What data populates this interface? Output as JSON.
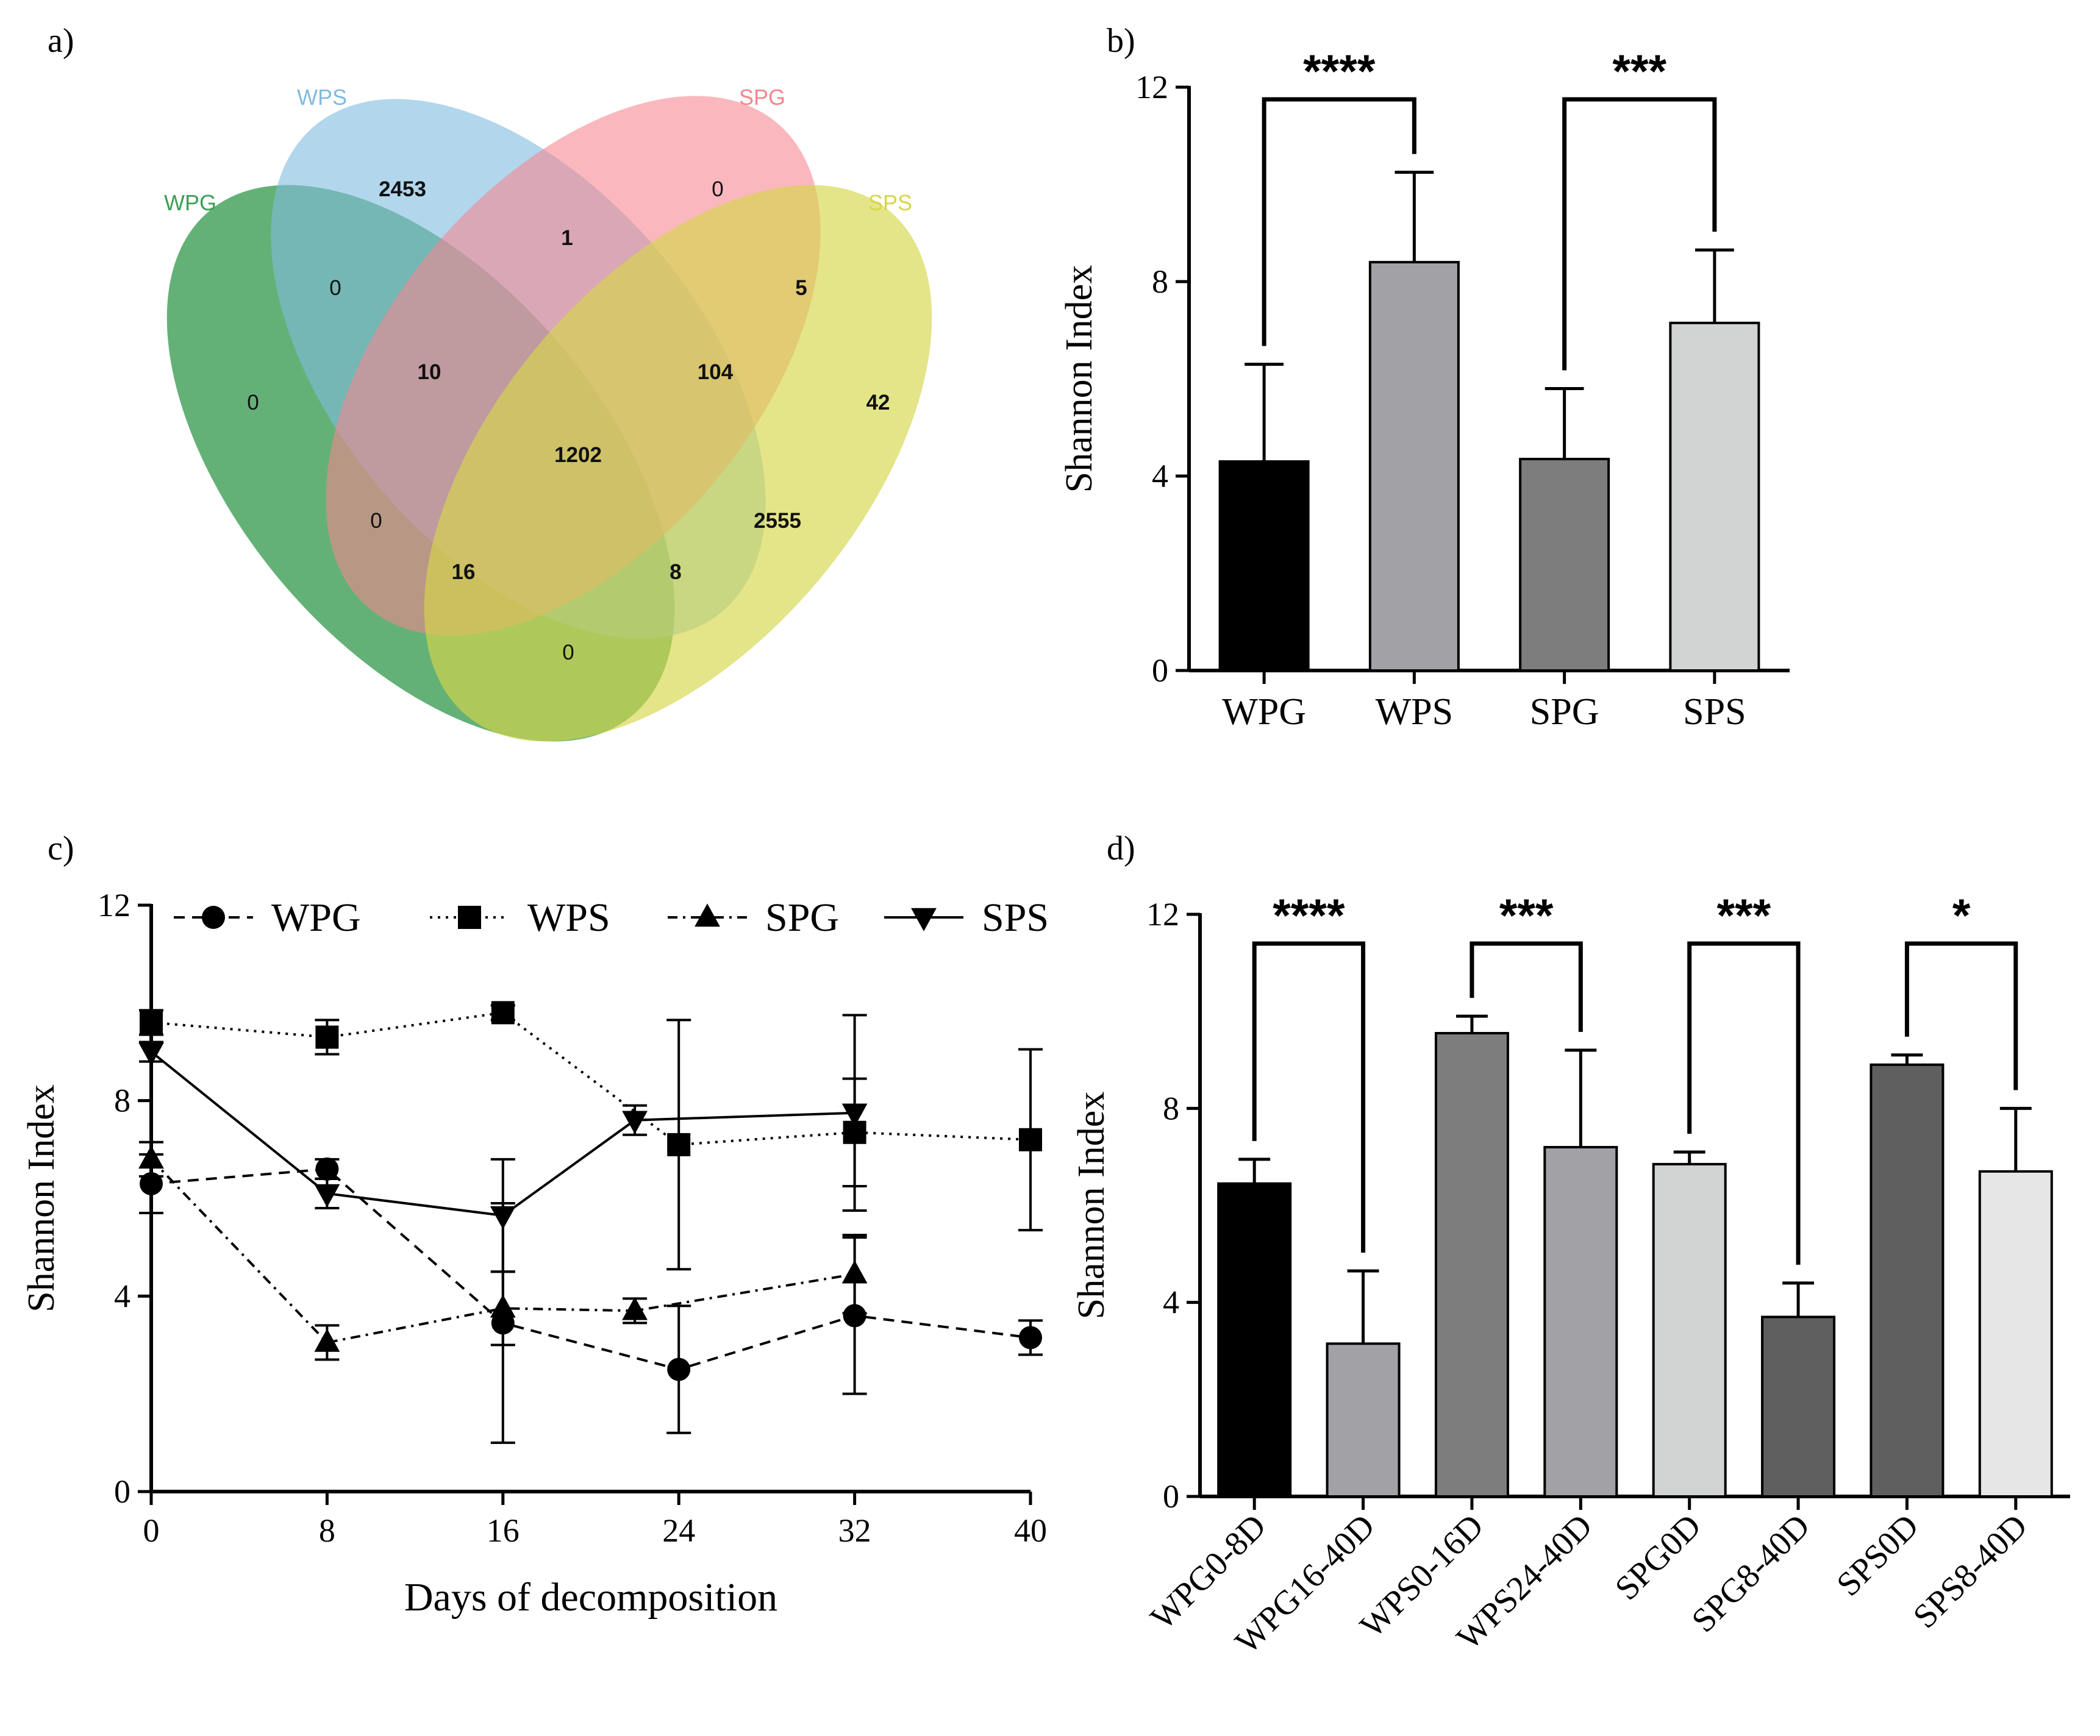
{
  "figure": {
    "labels": [
      "a)",
      "b)",
      "c)",
      "d)"
    ]
  },
  "chart_data": [
    {
      "panel": "a)",
      "type": "venn",
      "title": "",
      "sets": [
        {
          "name": "WPG",
          "color": "#3d9e55"
        },
        {
          "name": "WPS",
          "color": "#7fbbe0"
        },
        {
          "name": "SPG",
          "color": "#f7848f"
        },
        {
          "name": "SPS",
          "color": "#d6d64a"
        }
      ],
      "regions": [
        {
          "sets": [
            "WPS"
          ],
          "value": 2453
        },
        {
          "sets": [
            "SPG"
          ],
          "value": 0
        },
        {
          "sets": [
            "WPG"
          ],
          "value": 0
        },
        {
          "sets": [
            "SPS"
          ],
          "value": 42
        },
        {
          "sets": [
            "WPS",
            "SPG"
          ],
          "value": 1
        },
        {
          "sets": [
            "WPG",
            "WPS"
          ],
          "value": 0
        },
        {
          "sets": [
            "SPG",
            "SPS"
          ],
          "value": 5
        },
        {
          "sets": [
            "WPG",
            "WPS",
            "SPG"
          ],
          "value": 10
        },
        {
          "sets": [
            "WPS",
            "SPG",
            "SPS"
          ],
          "value": 104
        },
        {
          "sets": [
            "WPG",
            "WPS",
            "SPG",
            "SPS"
          ],
          "value": 1202
        },
        {
          "sets": [
            "WPG",
            "SPG"
          ],
          "value": 0
        },
        {
          "sets": [
            "WPS",
            "SPS"
          ],
          "value": 2555
        },
        {
          "sets": [
            "WPG",
            "SPG",
            "SPS"
          ],
          "value": 16
        },
        {
          "sets": [
            "WPG",
            "WPS",
            "SPS"
          ],
          "value": 8
        },
        {
          "sets": [
            "WPG",
            "SPS"
          ],
          "value": 0
        }
      ]
    },
    {
      "panel": "b)",
      "type": "bar",
      "title": "",
      "xlabel": "",
      "ylabel": "Shannon Index",
      "ylim": [
        0,
        12
      ],
      "yticks": [
        0,
        4,
        8,
        12
      ],
      "categories": [
        "WPG",
        "WPS",
        "SPG",
        "SPS"
      ],
      "values": [
        4.3,
        8.4,
        4.35,
        7.15
      ],
      "errors": [
        2.0,
        1.85,
        1.45,
        1.5
      ],
      "colors": [
        "#000000",
        "#a2a2a6",
        "#7d7d7d",
        "#d2d4d4"
      ],
      "significance": [
        {
          "from": 0,
          "to": 1,
          "label": "****"
        },
        {
          "from": 2,
          "to": 3,
          "label": "***"
        }
      ]
    },
    {
      "panel": "c)",
      "type": "line",
      "title": "",
      "xlabel": "Days of decomposition",
      "ylabel": "Shannon Index",
      "xlim": [
        0,
        40
      ],
      "ylim": [
        0,
        12
      ],
      "xticks": [
        0,
        8,
        16,
        24,
        32,
        40
      ],
      "yticks": [
        0,
        4,
        8,
        12
      ],
      "legend_position": "top",
      "series": [
        {
          "name": "WPG",
          "marker": "circle",
          "dash": "dashed",
          "x": [
            0,
            8,
            16,
            24,
            32,
            40
          ],
          "y": [
            6.3,
            6.6,
            3.45,
            2.5,
            3.6,
            3.15
          ],
          "err": [
            0.6,
            0.2,
            2.45,
            1.3,
            1.6,
            0.35
          ]
        },
        {
          "name": "WPS",
          "marker": "square",
          "dash": "dotted",
          "x": [
            0,
            8,
            16,
            24,
            32,
            40
          ],
          "y": [
            9.6,
            9.3,
            9.8,
            7.1,
            7.35,
            7.2
          ],
          "err": [
            0.25,
            0.35,
            0.15,
            2.55,
            1.1,
            1.85
          ]
        },
        {
          "name": "SPG",
          "marker": "triangle-up",
          "dash": "dashdot",
          "x": [
            0,
            8,
            16,
            22,
            32
          ],
          "y": [
            6.8,
            3.05,
            3.75,
            3.7,
            4.45
          ],
          "err": [
            0.35,
            0.35,
            0.75,
            0.25,
            0.8
          ]
        },
        {
          "name": "SPS",
          "marker": "triangle-down",
          "dash": "solid",
          "x": [
            0,
            8,
            16,
            22,
            32
          ],
          "y": [
            9.0,
            6.1,
            5.65,
            7.6,
            7.75
          ],
          "err": [
            0.2,
            0.3,
            1.15,
            0.3,
            2.0
          ]
        }
      ]
    },
    {
      "panel": "d)",
      "type": "bar",
      "title": "",
      "xlabel": "",
      "ylabel": "Shannon Index",
      "ylim": [
        0,
        12
      ],
      "yticks": [
        0,
        4,
        8,
        12
      ],
      "categories": [
        "WPG0-8D",
        "WPG16-40D",
        "WPS0-16D",
        "WPS24-40D",
        "SPG0D",
        "SPG8-40D",
        "SPS0D",
        "SPS8-40D"
      ],
      "values": [
        6.45,
        3.15,
        9.55,
        7.2,
        6.85,
        3.7,
        8.9,
        6.7
      ],
      "errors": [
        0.5,
        1.5,
        0.35,
        2.0,
        0.25,
        0.7,
        0.2,
        1.3
      ],
      "colors": [
        "#000000",
        "#a2a2a6",
        "#7d7d7d",
        "#a2a2a6",
        "#d2d4d4",
        "#5f5f5f",
        "#5f5f5f",
        "#e6e6e6"
      ],
      "significance": [
        {
          "from": 0,
          "to": 1,
          "label": "****"
        },
        {
          "from": 2,
          "to": 3,
          "label": "***"
        },
        {
          "from": 4,
          "to": 5,
          "label": "***"
        },
        {
          "from": 6,
          "to": 7,
          "label": "*"
        }
      ]
    }
  ]
}
